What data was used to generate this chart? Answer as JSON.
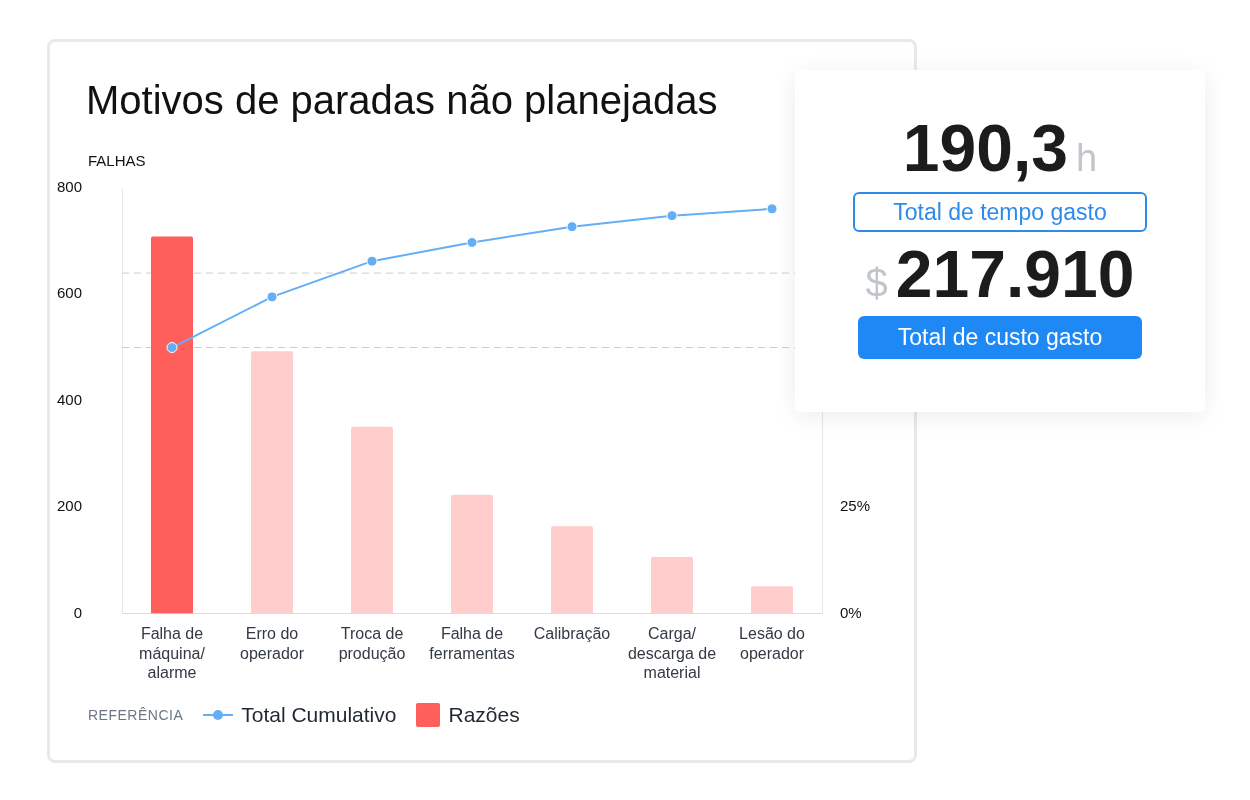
{
  "chart_data": {
    "type": "bar",
    "title": "Motivos de paradas não planejadas",
    "ylabel": "FALHAS",
    "legend_title": "REFERÊNCIA",
    "categories": [
      "Falha de máquina/ alarme",
      "Erro do operador",
      "Troca de produção",
      "Falha de ferramentas",
      "Calibração",
      "Carga/ descarga de material",
      "Lesão do operador"
    ],
    "series": [
      {
        "name": "Total Cumulativo",
        "type": "line",
        "axis": "y2",
        "color": "#64aef5",
        "values": [
          62.5,
          74.4,
          82.8,
          87.2,
          90.9,
          93.5,
          95.1
        ]
      },
      {
        "name": "Razões",
        "color": "#ff5f5a",
        "colors": [
          "#ff5f5a",
          "#ffcdcb",
          "#ffcdcb",
          "#ffcdcb",
          "#ffcdcb",
          "#ffcdcb",
          "#ffcdcb"
        ],
        "values": [
          709,
          493,
          351,
          223,
          164,
          106,
          51
        ]
      }
    ],
    "ylim": [
      0,
      800
    ],
    "yticks": [
      0,
      200,
      400,
      600,
      800
    ],
    "y2lim": [
      0,
      100
    ],
    "y2ticks": [
      {
        "value": 0,
        "label": "0%"
      },
      {
        "value": 25,
        "label": "25%"
      }
    ],
    "ref_lines": [
      {
        "axis": "y",
        "value": 500,
        "color": "#c8ccd2",
        "line_style": "dashed"
      },
      {
        "axis": "y",
        "value": 640,
        "color": "#c8ccd2",
        "line_style": "dashed"
      }
    ],
    "grid": false,
    "legend": "bottom",
    "marker": "circle",
    "annotations": [
      "190,3",
      "h",
      "Total de tempo gasto",
      "$",
      "217.910",
      "Total de custo gasto"
    ]
  }
}
